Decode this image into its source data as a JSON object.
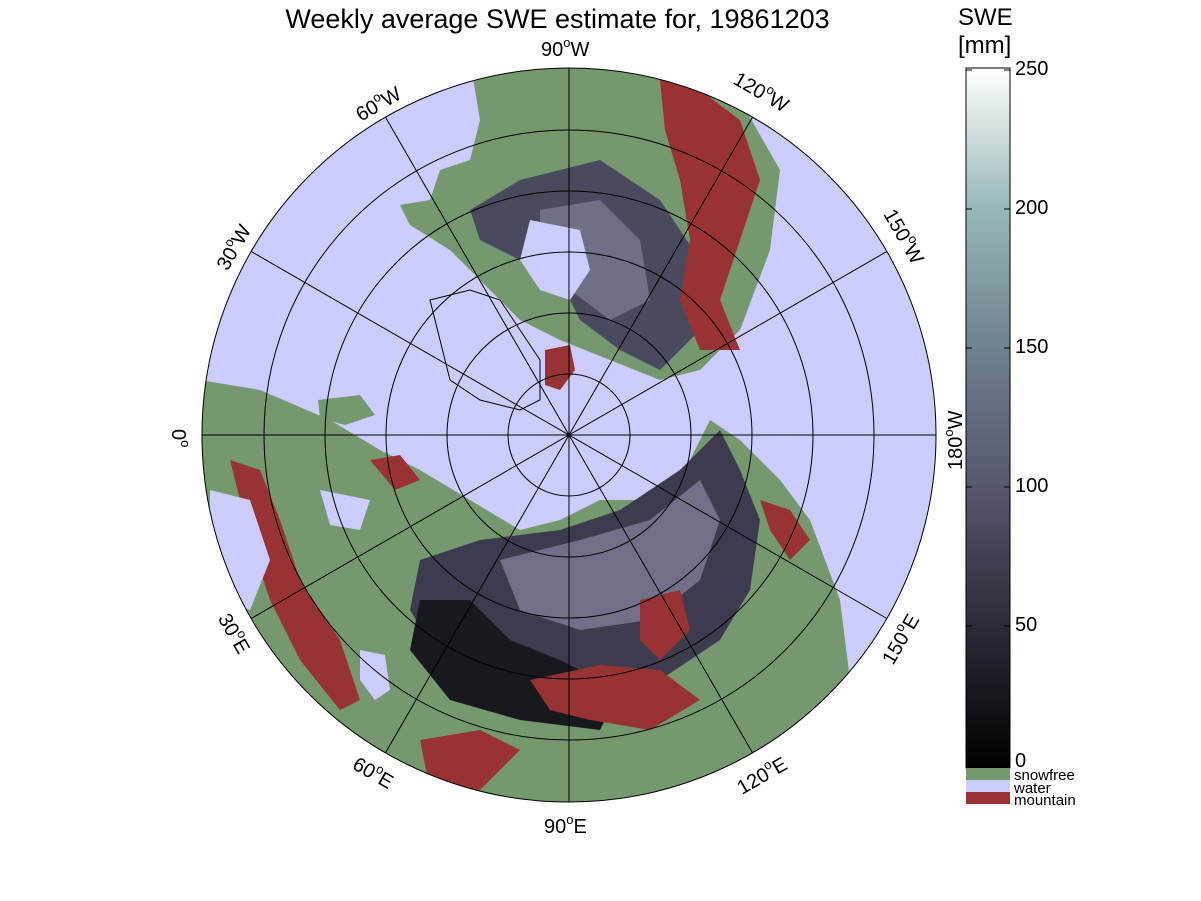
{
  "title": "Weekly average SWE estimate for, 19861203",
  "map": {
    "longitude_labels": [
      {
        "id": "lon-90w",
        "text": "90",
        "hemi": "W"
      },
      {
        "id": "lon-120w",
        "text": "120",
        "hemi": "W"
      },
      {
        "id": "lon-150w",
        "text": "150",
        "hemi": "W"
      },
      {
        "id": "lon-180w",
        "text": "180",
        "hemi": "W"
      },
      {
        "id": "lon-150e",
        "text": "150",
        "hemi": "E"
      },
      {
        "id": "lon-120e",
        "text": "120",
        "hemi": "E"
      },
      {
        "id": "lon-90e",
        "text": "90",
        "hemi": "E"
      },
      {
        "id": "lon-60e",
        "text": "60",
        "hemi": "E"
      },
      {
        "id": "lon-30e",
        "text": "30",
        "hemi": "E"
      },
      {
        "id": "lon-0",
        "text": "0",
        "hemi": ""
      },
      {
        "id": "lon-30w",
        "text": "30",
        "hemi": "W"
      },
      {
        "id": "lon-60w",
        "text": "60",
        "hemi": "W"
      }
    ],
    "colors": {
      "water": "#ccccff",
      "snowfree": "#75986e",
      "mountain": "#993333",
      "snow_low": "#1a1a22",
      "snow_high": "#7c7c94"
    }
  },
  "colorbar": {
    "unit_line1": "SWE",
    "unit_line2": "[mm]",
    "ticks": [
      "250",
      "200",
      "150",
      "100",
      "50",
      "0"
    ],
    "range": [
      0,
      250
    ],
    "colors": [
      "#000000",
      "#2b2b38",
      "#55556e",
      "#6e8290",
      "#98b8b8",
      "#ffffff"
    ],
    "legend": [
      {
        "label": "snowfree",
        "color": "#75986e"
      },
      {
        "label": "water",
        "color": "#ccccff"
      },
      {
        "label": "mountain",
        "color": "#993333"
      }
    ]
  }
}
